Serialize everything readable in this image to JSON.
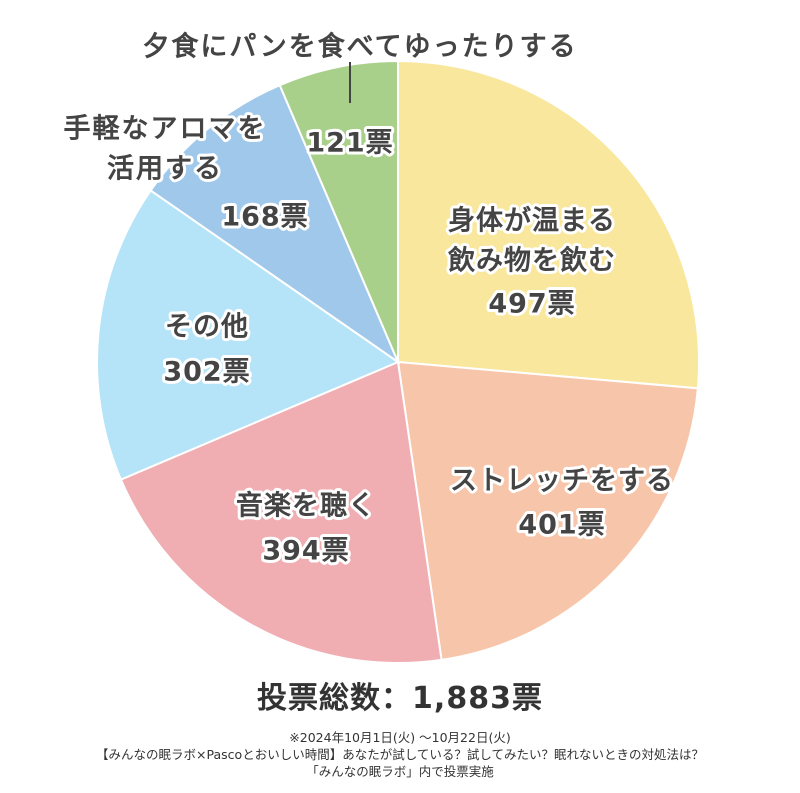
{
  "chart_data": {
    "type": "pie",
    "categories": [
      "身体が温まる飲み物を飲む",
      "ストレッチをする",
      "音楽を聴く",
      "その他",
      "手軽なアロマを活用する",
      "夕食にパンを食べてゆったりする"
    ],
    "label_lines": [
      [
        "身体が温まる",
        "飲み物を飲む"
      ],
      [
        "ストレッチをする"
      ],
      [
        "音楽を聴く"
      ],
      [
        "その他"
      ],
      [
        "手軽なアロマを",
        "活用する"
      ],
      [
        "夕食にパンを食べてゆったりする"
      ]
    ],
    "values": [
      497,
      401,
      394,
      302,
      168,
      121
    ],
    "value_labels": [
      "497票",
      "401票",
      "394票",
      "302票",
      "168票",
      "121票"
    ],
    "colors": [
      "#f8e79c",
      "#f7c5a9",
      "#f0aeb3",
      "#b5e3f7",
      "#9fc8ea",
      "#a9d08a"
    ],
    "start": "12 o'clock",
    "direction": "clockwise"
  },
  "total_label": "投票総数：1,883票",
  "footnotes": [
    "※2024年10月1日(火) 〜10月22日(火)",
    "【みんなの眠ラボ×Pascoとおいしい時間】あなたが試している？試してみたい？眠れないときの対処法は？",
    "「みんなの眠ラボ」内で投票実施"
  ]
}
